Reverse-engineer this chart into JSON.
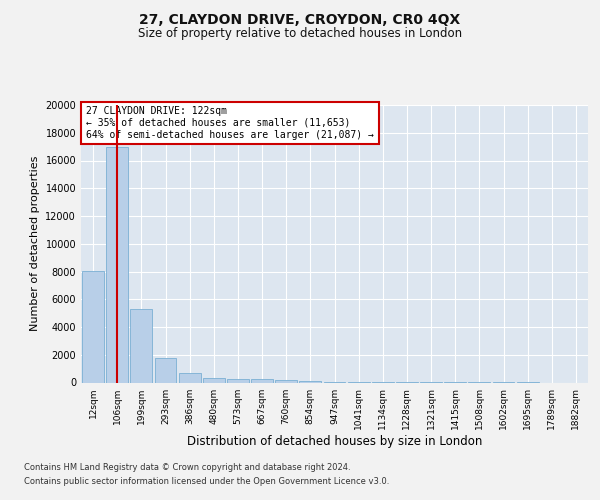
{
  "title_line1": "27, CLAYDON DRIVE, CROYDON, CR0 4QX",
  "title_line2": "Size of property relative to detached houses in London",
  "xlabel": "Distribution of detached houses by size in London",
  "ylabel": "Number of detached properties",
  "categories": [
    "12sqm",
    "106sqm",
    "199sqm",
    "293sqm",
    "386sqm",
    "480sqm",
    "573sqm",
    "667sqm",
    "760sqm",
    "854sqm",
    "947sqm",
    "1041sqm",
    "1134sqm",
    "1228sqm",
    "1321sqm",
    "1415sqm",
    "1508sqm",
    "1602sqm",
    "1695sqm",
    "1789sqm",
    "1882sqm"
  ],
  "bar_values": [
    8050,
    17000,
    5300,
    1750,
    650,
    350,
    270,
    220,
    150,
    100,
    60,
    30,
    15,
    8,
    4,
    3,
    2,
    1,
    1,
    0,
    0
  ],
  "bar_color": "#b8cfe8",
  "bar_edge_color": "#7aafd4",
  "vline_x": 1.0,
  "vline_color": "#cc0000",
  "annotation_title": "27 CLAYDON DRIVE: 122sqm",
  "annotation_line1": "← 35% of detached houses are smaller (11,653)",
  "annotation_line2": "64% of semi-detached houses are larger (21,087) →",
  "annotation_box_facecolor": "#ffffff",
  "annotation_box_edgecolor": "#cc0000",
  "ylim": [
    0,
    20000
  ],
  "yticks": [
    0,
    2000,
    4000,
    6000,
    8000,
    10000,
    12000,
    14000,
    16000,
    18000,
    20000
  ],
  "background_color": "#dde6f0",
  "grid_color": "#ffffff",
  "fig_facecolor": "#f2f2f2",
  "footer_line1": "Contains HM Land Registry data © Crown copyright and database right 2024.",
  "footer_line2": "Contains public sector information licensed under the Open Government Licence v3.0."
}
